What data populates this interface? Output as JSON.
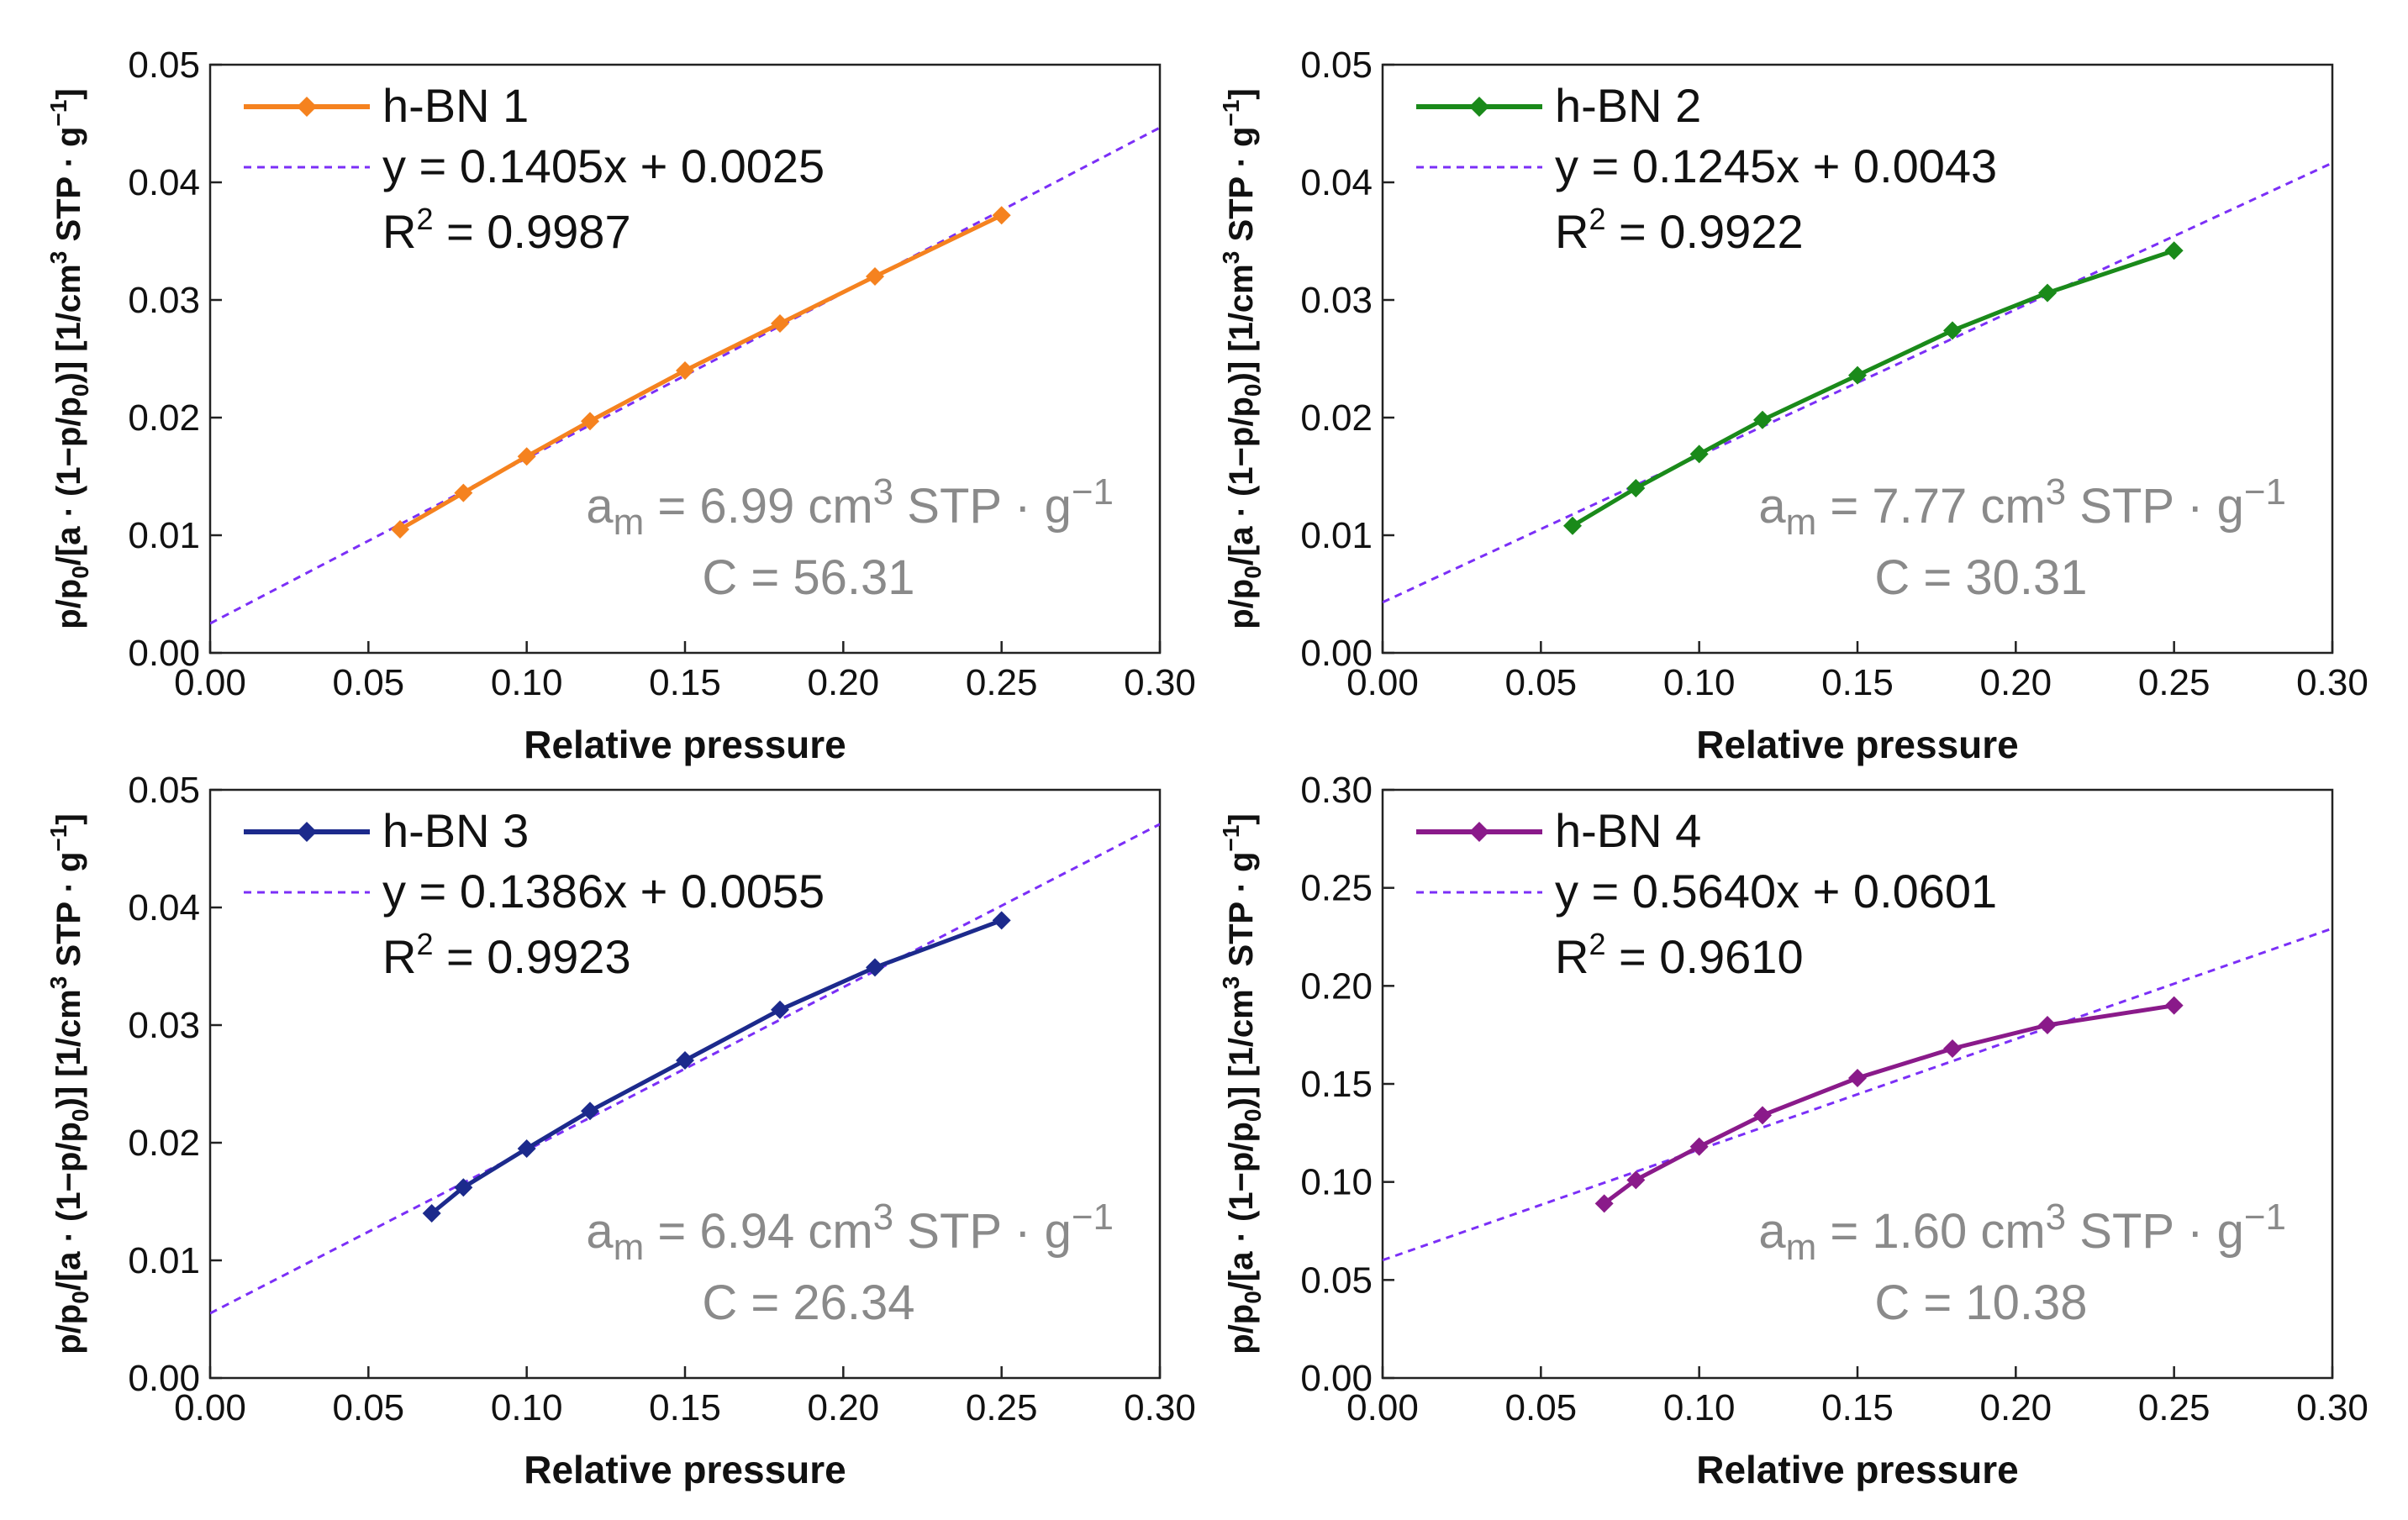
{
  "chart_data": [
    {
      "type": "line",
      "legend_label": "h-BN 1",
      "color": "#f5821f",
      "x": [
        0.06,
        0.08,
        0.1,
        0.12,
        0.15,
        0.18,
        0.21,
        0.25
      ],
      "y": [
        0.0105,
        0.0136,
        0.0167,
        0.0197,
        0.024,
        0.028,
        0.032,
        0.0372
      ],
      "fit": {
        "slope": 0.1405,
        "intercept": 0.0025,
        "equation": "y = 0.1405x + 0.0025",
        "r2_text": "= 0.9987"
      },
      "xlabel": "Relative pressure",
      "ylabel": "p/p0/[a · (1−p/p0)] [1/cm3 STP · g−1]",
      "xlim": [
        0,
        0.3
      ],
      "ylim": [
        0,
        0.05
      ],
      "xticks": [
        "0.00",
        "0.05",
        "0.10",
        "0.15",
        "0.20",
        "0.25",
        "0.30"
      ],
      "yticks": [
        "0.00",
        "0.01",
        "0.02",
        "0.03",
        "0.04",
        "0.05"
      ],
      "annotation": {
        "am_value": "6.99",
        "c_text": "C = 56.31"
      }
    },
    {
      "type": "line",
      "legend_label": "h-BN 2",
      "color": "#1a8a1a",
      "x": [
        0.06,
        0.08,
        0.1,
        0.12,
        0.15,
        0.18,
        0.21,
        0.25
      ],
      "y": [
        0.0108,
        0.014,
        0.0169,
        0.0198,
        0.0236,
        0.0274,
        0.0306,
        0.0342
      ],
      "fit": {
        "slope": 0.1245,
        "intercept": 0.0043,
        "equation": "y = 0.1245x + 0.0043",
        "r2_text": "= 0.9922"
      },
      "xlabel": "Relative pressure",
      "ylabel": "p/p0/[a · (1−p/p0)] [1/cm3 STP · g−1]",
      "xlim": [
        0,
        0.3
      ],
      "ylim": [
        0,
        0.05
      ],
      "xticks": [
        "0.00",
        "0.05",
        "0.10",
        "0.15",
        "0.20",
        "0.25",
        "0.30"
      ],
      "yticks": [
        "0.00",
        "0.01",
        "0.02",
        "0.03",
        "0.04",
        "0.05"
      ],
      "annotation": {
        "am_value": "7.77",
        "c_text": "C = 30.31"
      }
    },
    {
      "type": "line",
      "legend_label": "h-BN 3",
      "color": "#1c2a8c",
      "x": [
        0.07,
        0.08,
        0.1,
        0.12,
        0.15,
        0.18,
        0.21,
        0.25
      ],
      "y": [
        0.014,
        0.0162,
        0.0195,
        0.0227,
        0.027,
        0.0313,
        0.0349,
        0.0389
      ],
      "fit": {
        "slope": 0.1386,
        "intercept": 0.0055,
        "equation": "y = 0.1386x + 0.0055",
        "r2_text": "= 0.9923"
      },
      "xlabel": "Relative pressure",
      "ylabel": "p/p0/[a · (1−p/p0)] [1/cm3 STP · g−1]",
      "xlim": [
        0,
        0.3
      ],
      "ylim": [
        0,
        0.05
      ],
      "xticks": [
        "0.00",
        "0.05",
        "0.10",
        "0.15",
        "0.20",
        "0.25",
        "0.30"
      ],
      "yticks": [
        "0.00",
        "0.01",
        "0.02",
        "0.03",
        "0.04",
        "0.05"
      ],
      "annotation": {
        "am_value": "6.94",
        "c_text": "C = 26.34"
      }
    },
    {
      "type": "line",
      "legend_label": "h-BN 4",
      "color": "#8a1a8a",
      "x": [
        0.07,
        0.08,
        0.1,
        0.12,
        0.15,
        0.18,
        0.21,
        0.25
      ],
      "y": [
        0.089,
        0.101,
        0.118,
        0.134,
        0.153,
        0.168,
        0.18,
        0.19
      ],
      "fit": {
        "slope": 0.564,
        "intercept": 0.0601,
        "equation": "y = 0.5640x + 0.0601",
        "r2_text": "= 0.9610"
      },
      "xlabel": "Relative pressure",
      "ylabel": "p/p0/[a · (1−p/p0)] [1/cm3 STP · g−1]",
      "xlim": [
        0,
        0.3
      ],
      "ylim": [
        0,
        0.3
      ],
      "xticks": [
        "0.00",
        "0.05",
        "0.10",
        "0.15",
        "0.20",
        "0.25",
        "0.30"
      ],
      "yticks": [
        "0.00",
        "0.05",
        "0.10",
        "0.15",
        "0.20",
        "0.25",
        "0.30"
      ],
      "annotation": {
        "am_value": "1.60",
        "c_text": "C = 10.38"
      }
    }
  ],
  "labels": {
    "r_symbol": "R",
    "r_sup": "2",
    "am_prefix": "a",
    "am_sub": "m",
    "am_eq": " = ",
    "am_unit": " cm",
    "am_unit_sup": "3",
    "am_stp": " STP · g",
    "am_stp_sup": "−1",
    "y_p": "p/p",
    "y_sub0": "0",
    "y_mid": "/[a · (1−p/p",
    "y_mid2": ")] [1/cm",
    "y_sup3": "3",
    "y_stp": " STP · g",
    "y_supm1": "−1",
    "y_end": "]"
  }
}
